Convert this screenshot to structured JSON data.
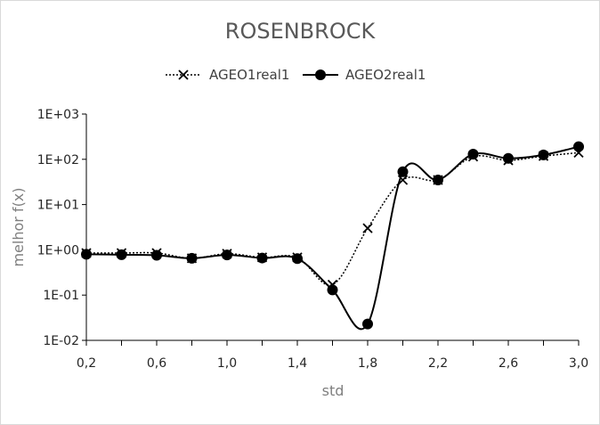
{
  "chart_data": {
    "type": "line",
    "title": "ROSENBROCK",
    "xlabel": "std",
    "ylabel": "melhor f(x)",
    "yscale": "log",
    "ylim": [
      0.01,
      1000
    ],
    "xlim": [
      0.2,
      3.0
    ],
    "x_tick_labels": [
      "0,2",
      "0,6",
      "1,0",
      "1,4",
      "1,8",
      "2,2",
      "2,6",
      "3,0"
    ],
    "y_tick_labels": [
      "1E-02",
      "1E-01",
      "1E+00",
      "1E+01",
      "1E+02",
      "1E+03"
    ],
    "legend_position": "top",
    "x": [
      0.2,
      0.4,
      0.6,
      0.8,
      1.0,
      1.2,
      1.4,
      1.6,
      1.8,
      2.0,
      2.2,
      2.4,
      2.6,
      2.8,
      3.0
    ],
    "series": [
      {
        "name": "AGEO1real1",
        "style": "dotted",
        "marker": "x",
        "color": "#000000",
        "values": [
          0.85,
          0.85,
          0.85,
          0.65,
          0.82,
          0.68,
          0.68,
          0.17,
          3.0,
          35,
          35,
          115,
          95,
          118,
          140
        ]
      },
      {
        "name": "AGEO2real1",
        "style": "solid",
        "marker": "circle",
        "color": "#000000",
        "values": [
          0.8,
          0.78,
          0.76,
          0.65,
          0.77,
          0.66,
          0.64,
          0.13,
          0.023,
          53,
          35,
          130,
          105,
          125,
          190
        ]
      }
    ]
  }
}
